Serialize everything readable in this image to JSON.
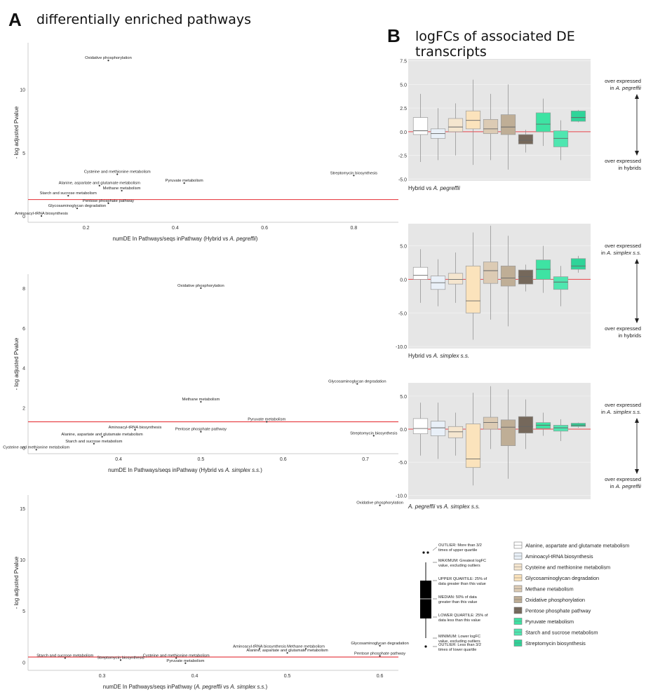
{
  "panel_a": {
    "letter": "A",
    "title": "differentially enriched pathways"
  },
  "panel_b": {
    "letter": "B",
    "title": "logFCs of associated DE transcripts"
  },
  "chart_data": [
    {
      "type": "scatter",
      "id": "a1",
      "ylabel": "- log adjusted Pvalue",
      "xlabel": "numDE In Pathways/seqs inPathway (Hybrid vs A. pegreffii)",
      "xlim": [
        0.07,
        0.9
      ],
      "ylim": [
        -0.5,
        13.7
      ],
      "xticks": [
        "0.2",
        "0.4",
        "0.6",
        "0.8"
      ],
      "yticks": [
        "0",
        "5",
        "10"
      ],
      "threshold": 1.3,
      "points": [
        {
          "label": "Oxidative phosphorylation",
          "x": 0.25,
          "y": 12.3
        },
        {
          "label": "Cysteine and methionine metabolism",
          "x": 0.27,
          "y": 3.3
        },
        {
          "label": "Streptomycin biosynthesis",
          "x": 0.8,
          "y": 3.2
        },
        {
          "label": "Pyruvate metabolism",
          "x": 0.42,
          "y": 2.6
        },
        {
          "label": "Alanine, aspartate and glutamate metabolism",
          "x": 0.23,
          "y": 2.4
        },
        {
          "label": "Methane metabolism",
          "x": 0.28,
          "y": 2.0
        },
        {
          "label": "Starch and sucrose metabolism",
          "x": 0.16,
          "y": 1.6
        },
        {
          "label": "Pentose phosphate pathway",
          "x": 0.25,
          "y": 1.0
        },
        {
          "label": "Glycosaminoglycan degradation",
          "x": 0.18,
          "y": 0.6
        },
        {
          "label": "Aminoacyl-tRNA biosynthesis",
          "x": 0.1,
          "y": 0.0
        }
      ]
    },
    {
      "type": "scatter",
      "id": "a2",
      "ylabel": "- log adjusted Pvalue",
      "xlabel": "numDE In Pathways/seqs inPathway (Hybrid vs A. simplex s.s.)",
      "xlim": [
        0.29,
        0.74
      ],
      "ylim": [
        -0.3,
        8.7
      ],
      "xticks": [
        "0.4",
        "0.5",
        "0.6",
        "0.7"
      ],
      "yticks": [
        "0",
        "2",
        "4",
        "6",
        "8"
      ],
      "threshold": 1.3,
      "points": [
        {
          "label": "Oxidative phosphorylation",
          "x": 0.5,
          "y": 8.0
        },
        {
          "label": "Glycosaminoglycan degradation",
          "x": 0.69,
          "y": 3.2
        },
        {
          "label": "Methane metabolism",
          "x": 0.5,
          "y": 2.3
        },
        {
          "label": "Pyruvate metabolism",
          "x": 0.58,
          "y": 1.3
        },
        {
          "label": "Aminoacyl-tRNA biosynthesis",
          "x": 0.42,
          "y": 0.9
        },
        {
          "label": "Pentose phosphate pathway",
          "x": 0.5,
          "y": 0.8
        },
        {
          "label": "Streptomycin biosynthesis",
          "x": 0.71,
          "y": 0.6
        },
        {
          "label": "Alanine, aspartate and glutamate metabolism",
          "x": 0.38,
          "y": 0.55
        },
        {
          "label": "Starch and sucrose metabolism",
          "x": 0.37,
          "y": 0.2
        },
        {
          "label": "Cysteine and methionine metabolism",
          "x": 0.3,
          "y": -0.1
        }
      ]
    },
    {
      "type": "scatter",
      "id": "a3",
      "ylabel": "- log adjusted Pvalue",
      "xlabel": "numDE In Pathways/seqs inPathway (A. pegreffii vs A. simplex s.s.)",
      "xlim": [
        0.22,
        0.62
      ],
      "ylim": [
        -0.8,
        16.3
      ],
      "xticks": [
        "0.3",
        "0.4",
        "0.5",
        "0.6"
      ],
      "yticks": [
        "0",
        "5",
        "10",
        "15"
      ],
      "threshold": 0.5,
      "points": [
        {
          "label": "Oxidative phosphorylation",
          "x": 0.6,
          "y": 15.3
        },
        {
          "label": "Glycosaminoglycan degradation",
          "x": 0.6,
          "y": 1.6
        },
        {
          "label": "Aminoacyl-tRNA biosynthesis",
          "x": 0.47,
          "y": 1.3
        },
        {
          "label": "Methane metabolism",
          "x": 0.52,
          "y": 1.3
        },
        {
          "label": "Alanine, aspartate and glutamate metabolism",
          "x": 0.5,
          "y": 0.9
        },
        {
          "label": "Pentose phosphate pathway",
          "x": 0.6,
          "y": 0.6
        },
        {
          "label": "Starch and sucrose metabolism",
          "x": 0.26,
          "y": 0.4
        },
        {
          "label": "Cysteine and methionine metabolism",
          "x": 0.38,
          "y": 0.4
        },
        {
          "label": "Streptomycin biosynthesis",
          "x": 0.32,
          "y": 0.2
        },
        {
          "label": "Pyruvate metabolism",
          "x": 0.39,
          "y": -0.1
        }
      ]
    },
    {
      "type": "box",
      "id": "b1",
      "xlabel": "Hybrid vs A. pegreffii",
      "ylim": [
        -5.2,
        7.7
      ],
      "yticks": [
        "-5.0",
        "-2.5",
        "0.0",
        "2.5",
        "5.0",
        "7.5"
      ],
      "upper_note": [
        "over expressed",
        "in A. pegreffii"
      ],
      "lower_note": [
        "over expressed",
        "in hybrids"
      ],
      "boxes": [
        {
          "name": "Alanine, aspartate and glutamate metabolism",
          "q1": -0.3,
          "median": 0.1,
          "q3": 1.5,
          "lo": -3.2,
          "hi": 4.0
        },
        {
          "name": "Aminoacyl-tRNA biosynthesis",
          "q1": -0.7,
          "median": -0.2,
          "q3": 0.3,
          "lo": -3.0,
          "hi": 2.5
        },
        {
          "name": "Cysteine and methionine metabolism",
          "q1": 0.0,
          "median": 0.5,
          "q3": 1.4,
          "lo": -2.5,
          "hi": 3.0
        },
        {
          "name": "Glycosaminoglycan degradation",
          "q1": 0.3,
          "median": 1.2,
          "q3": 2.2,
          "lo": -3.5,
          "hi": 5.5
        },
        {
          "name": "Methane metabolism",
          "q1": -0.2,
          "median": 0.3,
          "q3": 1.3,
          "lo": -3.0,
          "hi": 4.0
        },
        {
          "name": "Oxidative phosphorylation",
          "q1": -0.3,
          "median": 0.5,
          "q3": 1.8,
          "lo": -4.0,
          "hi": 5.0
        },
        {
          "name": "Pentose phosphate pathway",
          "q1": -1.3,
          "median": -0.9,
          "q3": -0.3,
          "lo": -2.2,
          "hi": 0.2
        },
        {
          "name": "Pyruvate metabolism",
          "q1": 0.0,
          "median": 0.8,
          "q3": 2.0,
          "lo": -1.5,
          "hi": 3.5
        },
        {
          "name": "Starch and sucrose metabolism",
          "q1": -1.6,
          "median": -0.7,
          "q3": 0.1,
          "lo": -3.0,
          "hi": 1.2
        },
        {
          "name": "Streptomycin biosynthesis",
          "q1": 1.1,
          "median": 1.5,
          "q3": 2.2,
          "lo": 1.0,
          "hi": 2.3
        }
      ]
    },
    {
      "type": "box",
      "id": "b2",
      "xlabel": "Hybrid vs A. simplex s.s.",
      "ylim": [
        -10.3,
        8.3
      ],
      "yticks": [
        "-10.0",
        "-5.0",
        "0.0",
        "5.0"
      ],
      "upper_note": [
        "over expressed",
        "in A. simplex s.s."
      ],
      "lower_note": [
        "over expressed",
        "in hybrids"
      ],
      "boxes": [
        {
          "name": "Alanine, aspartate and glutamate metabolism",
          "q1": 0.0,
          "median": 0.6,
          "q3": 1.8,
          "lo": -3.5,
          "hi": 4.5
        },
        {
          "name": "Aminoacyl-tRNA biosynthesis",
          "q1": -1.5,
          "median": -0.5,
          "q3": 0.5,
          "lo": -4.0,
          "hi": 3.0
        },
        {
          "name": "Cysteine and methionine metabolism",
          "q1": -0.7,
          "median": 0.0,
          "q3": 0.9,
          "lo": -3.5,
          "hi": 4.0
        },
        {
          "name": "Glycosaminoglycan degradation",
          "q1": -5.0,
          "median": -3.2,
          "q3": 2.0,
          "lo": -9.0,
          "hi": 7.0
        },
        {
          "name": "Methane metabolism",
          "q1": -0.6,
          "median": 1.3,
          "q3": 2.6,
          "lo": -6.0,
          "hi": 8.0
        },
        {
          "name": "Oxidative phosphorylation",
          "q1": -1.0,
          "median": 0.2,
          "q3": 2.0,
          "lo": -7.0,
          "hi": 6.5
        },
        {
          "name": "Pentose phosphate pathway",
          "q1": -0.7,
          "median": 0.4,
          "q3": 1.4,
          "lo": -1.8,
          "hi": 2.2
        },
        {
          "name": "Pyruvate metabolism",
          "q1": 0.0,
          "median": 1.5,
          "q3": 2.9,
          "lo": -2.0,
          "hi": 5.0
        },
        {
          "name": "Starch and sucrose metabolism",
          "q1": -1.5,
          "median": -0.4,
          "q3": 0.4,
          "lo": -4.0,
          "hi": 2.0
        },
        {
          "name": "Streptomycin biosynthesis",
          "q1": 1.5,
          "median": 2.0,
          "q3": 3.1,
          "lo": 1.0,
          "hi": 3.5
        }
      ]
    },
    {
      "type": "box",
      "id": "b3",
      "xlabel": "A. pegreffii vs A. simplex s.s.",
      "ylim": [
        -10.6,
        7.0
      ],
      "yticks": [
        "-10.0",
        "-5.0",
        "0.0",
        "5.0"
      ],
      "upper_note": [
        "over expressed",
        "in A. simplex s.s."
      ],
      "lower_note": [
        "over expressed",
        "in A. pegreffii"
      ],
      "boxes": [
        {
          "name": "Alanine, aspartate and glutamate metabolism",
          "q1": -0.7,
          "median": 0.1,
          "q3": 1.6,
          "lo": -4.0,
          "hi": 4.0
        },
        {
          "name": "Aminoacyl-tRNA biosynthesis",
          "q1": -1.0,
          "median": 0.2,
          "q3": 1.2,
          "lo": -4.5,
          "hi": 4.0
        },
        {
          "name": "Cysteine and methionine metabolism",
          "q1": -1.3,
          "median": -0.4,
          "q3": 0.4,
          "lo": -4.0,
          "hi": 2.5
        },
        {
          "name": "Glycosaminoglycan degradation",
          "q1": -5.8,
          "median": -4.5,
          "q3": 0.8,
          "lo": -8.5,
          "hi": 5.5
        },
        {
          "name": "Methane metabolism",
          "q1": 0.0,
          "median": 1.0,
          "q3": 1.8,
          "lo": -3.0,
          "hi": 6.5
        },
        {
          "name": "Oxidative phosphorylation",
          "q1": -2.5,
          "median": 0.3,
          "q3": 1.4,
          "lo": -7.5,
          "hi": 6.0
        },
        {
          "name": "Pentose phosphate pathway",
          "q1": -0.6,
          "median": 0.4,
          "q3": 1.9,
          "lo": -3.0,
          "hi": 4.5
        },
        {
          "name": "Pyruvate metabolism",
          "q1": 0.1,
          "median": 0.6,
          "q3": 1.0,
          "lo": -1.0,
          "hi": 2.5
        },
        {
          "name": "Starch and sucrose metabolism",
          "q1": -0.3,
          "median": 0.2,
          "q3": 0.6,
          "lo": -1.8,
          "hi": 1.5
        },
        {
          "name": "Streptomycin biosynthesis",
          "q1": 0.4,
          "median": 0.6,
          "q3": 0.9,
          "lo": 0.2,
          "hi": 1.0
        }
      ]
    }
  ],
  "legend": {
    "items": [
      {
        "name": "Alanine, aspartate and glutamate metabolism",
        "color": "#ffffff"
      },
      {
        "name": "Aminoacyl-tRNA biosynthesis",
        "color": "#e9f0f8"
      },
      {
        "name": "Cysteine and methionine metabolism",
        "color": "#f5e6cf"
      },
      {
        "name": "Glycosaminoglycan degradation",
        "color": "#fbe3bc"
      },
      {
        "name": "Methane metabolism",
        "color": "#dccbb4"
      },
      {
        "name": "Oxidative phosphorylation",
        "color": "#bfae96"
      },
      {
        "name": "Pentose phosphate pathway",
        "color": "#75685b"
      },
      {
        "name": "Pyruvate metabolism",
        "color": "#3ee3a3"
      },
      {
        "name": "Starch and sucrose metabolism",
        "color": "#4fe6b0"
      },
      {
        "name": "Streptomycin biosynthesis",
        "color": "#2fd499"
      }
    ],
    "key": {
      "outlier_high": [
        "OUTLIER: More than 3/2",
        "times of upper quartile"
      ],
      "maximum": [
        "MAXIMUM: Greatest logFC",
        "value, excluding outliers"
      ],
      "upper_quartile": [
        "UPPER QUARTILE: 25% of",
        "data greater than this value"
      ],
      "median": [
        "MEDIAN: 50% of data",
        "greater than this value"
      ],
      "lower_quartile": [
        "LOWER QUARTILE: 25% of",
        "data less than this value"
      ],
      "minimum": [
        "MINIMUM: Lower logFC",
        "value, excluding outliers"
      ],
      "outlier_low": [
        "OUTLIER: Less than 3/2",
        "times of lower quartile"
      ]
    }
  }
}
